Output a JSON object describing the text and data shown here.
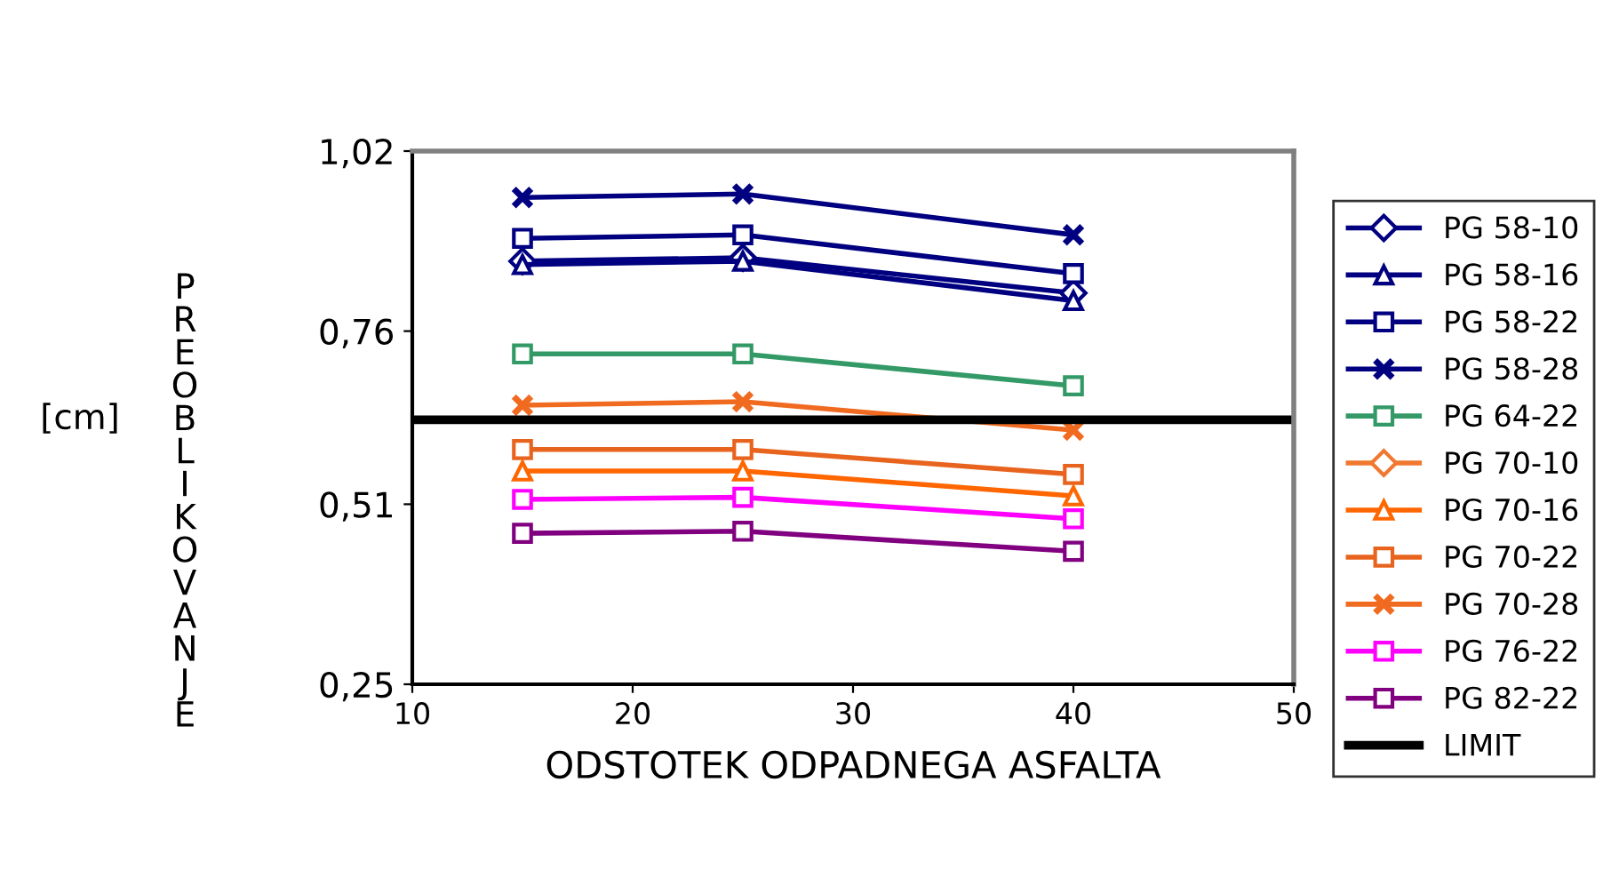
{
  "chart_data": {
    "type": "line",
    "xlabel": "ODSTOTEK ODPADNEGA ASFALTA",
    "ylabel": "PREOBLIKOVANJE",
    "annotations": [
      "[cm]"
    ],
    "x": [
      15,
      25,
      40
    ],
    "xlim": [
      10,
      50
    ],
    "xticks": [
      10,
      20,
      30,
      40,
      50
    ],
    "ylim": [
      0.25,
      1.02
    ],
    "yticks": [
      {
        "value": 0.25,
        "label": "0,25"
      },
      {
        "value": 0.51,
        "label": "0,51"
      },
      {
        "value": 0.76,
        "label": "0,76"
      },
      {
        "value": 1.02,
        "label": "1,02"
      }
    ],
    "grid": false,
    "legend": "right",
    "series": [
      {
        "name": "PG 58-10",
        "color": "#000080",
        "marker": "diamond",
        "values": [
          0.861,
          0.866,
          0.815
        ]
      },
      {
        "name": "PG 58-16",
        "color": "#000080",
        "marker": "triangle",
        "values": [
          0.856,
          0.861,
          0.804
        ]
      },
      {
        "name": "PG 58-22",
        "color": "#000080",
        "marker": "square",
        "values": [
          0.894,
          0.899,
          0.843
        ]
      },
      {
        "name": "PG 58-28",
        "color": "#000080",
        "marker": "cross",
        "values": [
          0.953,
          0.958,
          0.899
        ]
      },
      {
        "name": "PG 64-22",
        "color": "#339966",
        "marker": "square",
        "values": [
          0.727,
          0.727,
          0.681
        ]
      },
      {
        "name": "PG 70-10",
        "color": "#f07830",
        "marker": "diamond",
        "values": [
          null,
          null,
          null
        ]
      },
      {
        "name": "PG 70-16",
        "color": "#ff6600",
        "marker": "triangle",
        "values": [
          0.558,
          0.558,
          0.522
        ]
      },
      {
        "name": "PG 70-22",
        "color": "#e8641e",
        "marker": "square",
        "values": [
          0.589,
          0.589,
          0.553
        ]
      },
      {
        "name": "PG 70-28",
        "color": "#f06a20",
        "marker": "cross",
        "values": [
          0.653,
          0.658,
          0.617
        ]
      },
      {
        "name": "PG 76-22",
        "color": "#ff00ff",
        "marker": "square",
        "values": [
          0.517,
          0.52,
          0.489
        ]
      },
      {
        "name": "PG 82-22",
        "color": "#800080",
        "marker": "square",
        "values": [
          0.468,
          0.471,
          0.442
        ]
      }
    ],
    "ref_lines": [
      {
        "axis": "y",
        "value": 0.632,
        "label": "LIMIT",
        "color": "#000000"
      }
    ]
  }
}
